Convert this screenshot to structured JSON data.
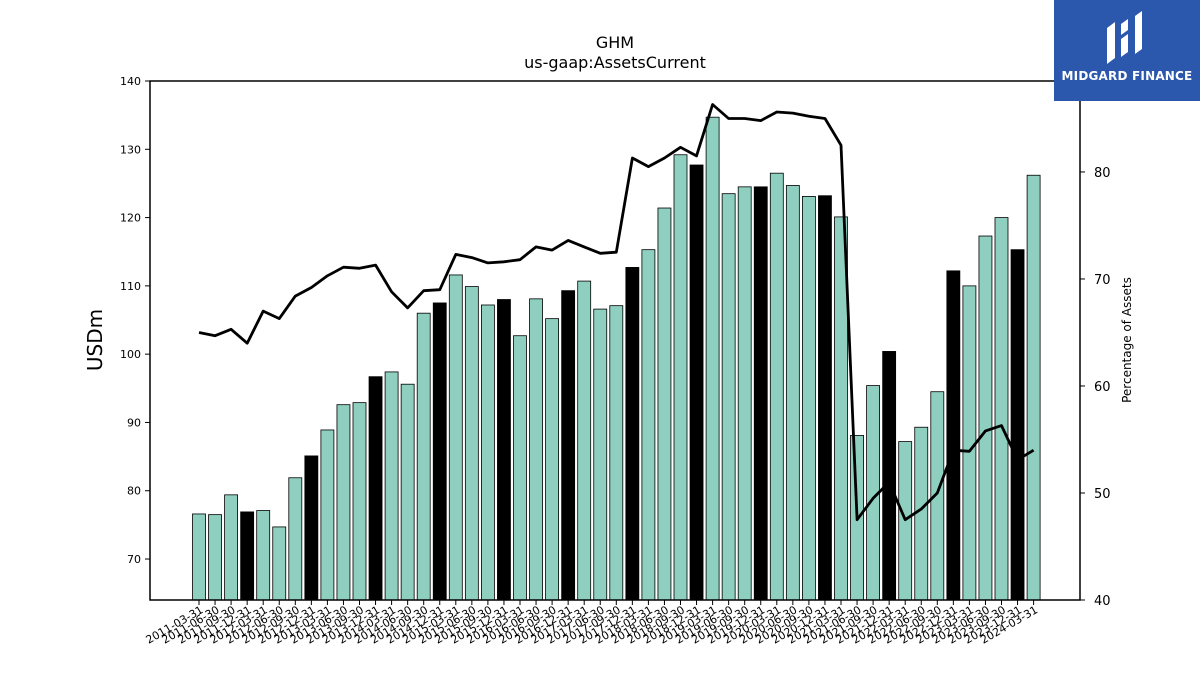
{
  "brand": {
    "name": "MIDGARD FINANCE",
    "color": "#2b58ad"
  },
  "chart_data": {
    "type": "bar",
    "title": "GHM",
    "subtitle": "us-gaap:AssetsCurrent",
    "ylabel": "USDm",
    "y2label": "Percentage of Assets",
    "ylim": [
      64,
      140
    ],
    "y2lim": [
      40,
      88.5
    ],
    "yticks": [
      70,
      80,
      90,
      100,
      110,
      120,
      130,
      140
    ],
    "y2ticks": [
      40,
      50,
      60,
      70,
      80
    ],
    "bar_color": "#8ecfc0",
    "highlight_color": "#000000",
    "line_color": "#000000",
    "categories": [
      "2011-03-31",
      "2011-06-30",
      "2011-09-30",
      "2011-12-31",
      "2012-03-31",
      "2012-06-30",
      "2012-09-30",
      "2012-12-31",
      "2013-03-31",
      "2013-06-30",
      "2013-09-30",
      "2013-12-31",
      "2014-03-31",
      "2014-06-30",
      "2014-09-30",
      "2014-12-31",
      "2015-03-31",
      "2015-06-30",
      "2015-09-30",
      "2015-12-31",
      "2016-03-31",
      "2016-06-30",
      "2016-09-30",
      "2016-12-31",
      "2017-03-31",
      "2017-06-30",
      "2017-09-30",
      "2017-12-31",
      "2018-03-31",
      "2018-06-30",
      "2018-09-30",
      "2018-12-31",
      "2019-03-31",
      "2019-06-30",
      "2019-09-30",
      "2019-12-31",
      "2020-03-31",
      "2020-06-30",
      "2020-09-30",
      "2020-12-31",
      "2021-03-31",
      "2021-06-30",
      "2021-09-30",
      "2021-12-31",
      "2022-03-31",
      "2022-06-30",
      "2022-09-30",
      "2022-12-31",
      "2023-03-31",
      "2023-06-30",
      "2023-09-30",
      "2023-12-31",
      "2024-03-31"
    ],
    "highlighted": [
      false,
      false,
      false,
      true,
      false,
      false,
      false,
      true,
      false,
      false,
      false,
      true,
      false,
      false,
      false,
      true,
      false,
      false,
      false,
      true,
      false,
      false,
      false,
      true,
      false,
      false,
      false,
      true,
      false,
      false,
      false,
      true,
      false,
      false,
      false,
      true,
      false,
      false,
      false,
      true,
      false,
      false,
      false,
      true,
      false,
      false,
      false,
      true,
      false,
      false,
      false,
      true,
      false
    ],
    "series": [
      {
        "values": [
          76.6,
          76.5,
          79.4,
          76.9,
          77.1,
          74.7,
          81.9,
          85.1,
          88.9,
          92.6,
          92.9,
          96.7,
          97.4,
          95.6,
          106.0,
          107.5,
          111.6,
          109.9,
          107.2,
          108.0,
          102.7,
          108.1,
          105.2,
          109.3,
          110.7,
          106.6,
          107.1,
          112.7,
          115.3,
          121.4,
          129.2,
          127.7,
          134.7,
          123.5,
          124.5,
          124.5,
          126.5,
          124.7,
          123.1,
          123.2,
          120.1,
          88.1,
          95.4,
          100.4,
          87.2,
          89.3,
          94.5,
          112.2,
          110.0,
          117.3,
          120.0,
          115.3,
          126.2
        ]
      },
      {
        "axis": "right",
        "type": "line",
        "values": [
          65.0,
          64.7,
          65.3,
          64.0,
          67.0,
          66.3,
          68.4,
          69.2,
          70.3,
          71.1,
          71.0,
          71.3,
          68.8,
          67.3,
          68.9,
          69.0,
          72.3,
          72.0,
          71.5,
          71.6,
          71.8,
          73.0,
          72.7,
          73.6,
          73.0,
          72.4,
          72.5,
          81.3,
          80.5,
          81.3,
          82.3,
          81.5,
          86.3,
          85.0,
          85.0,
          84.8,
          85.6,
          85.5,
          85.2,
          85.0,
          82.5,
          47.5,
          49.5,
          51.0,
          47.5,
          48.5,
          50.0,
          54.0,
          53.9,
          55.8,
          56.3,
          53.1,
          54.0
        ]
      }
    ]
  }
}
